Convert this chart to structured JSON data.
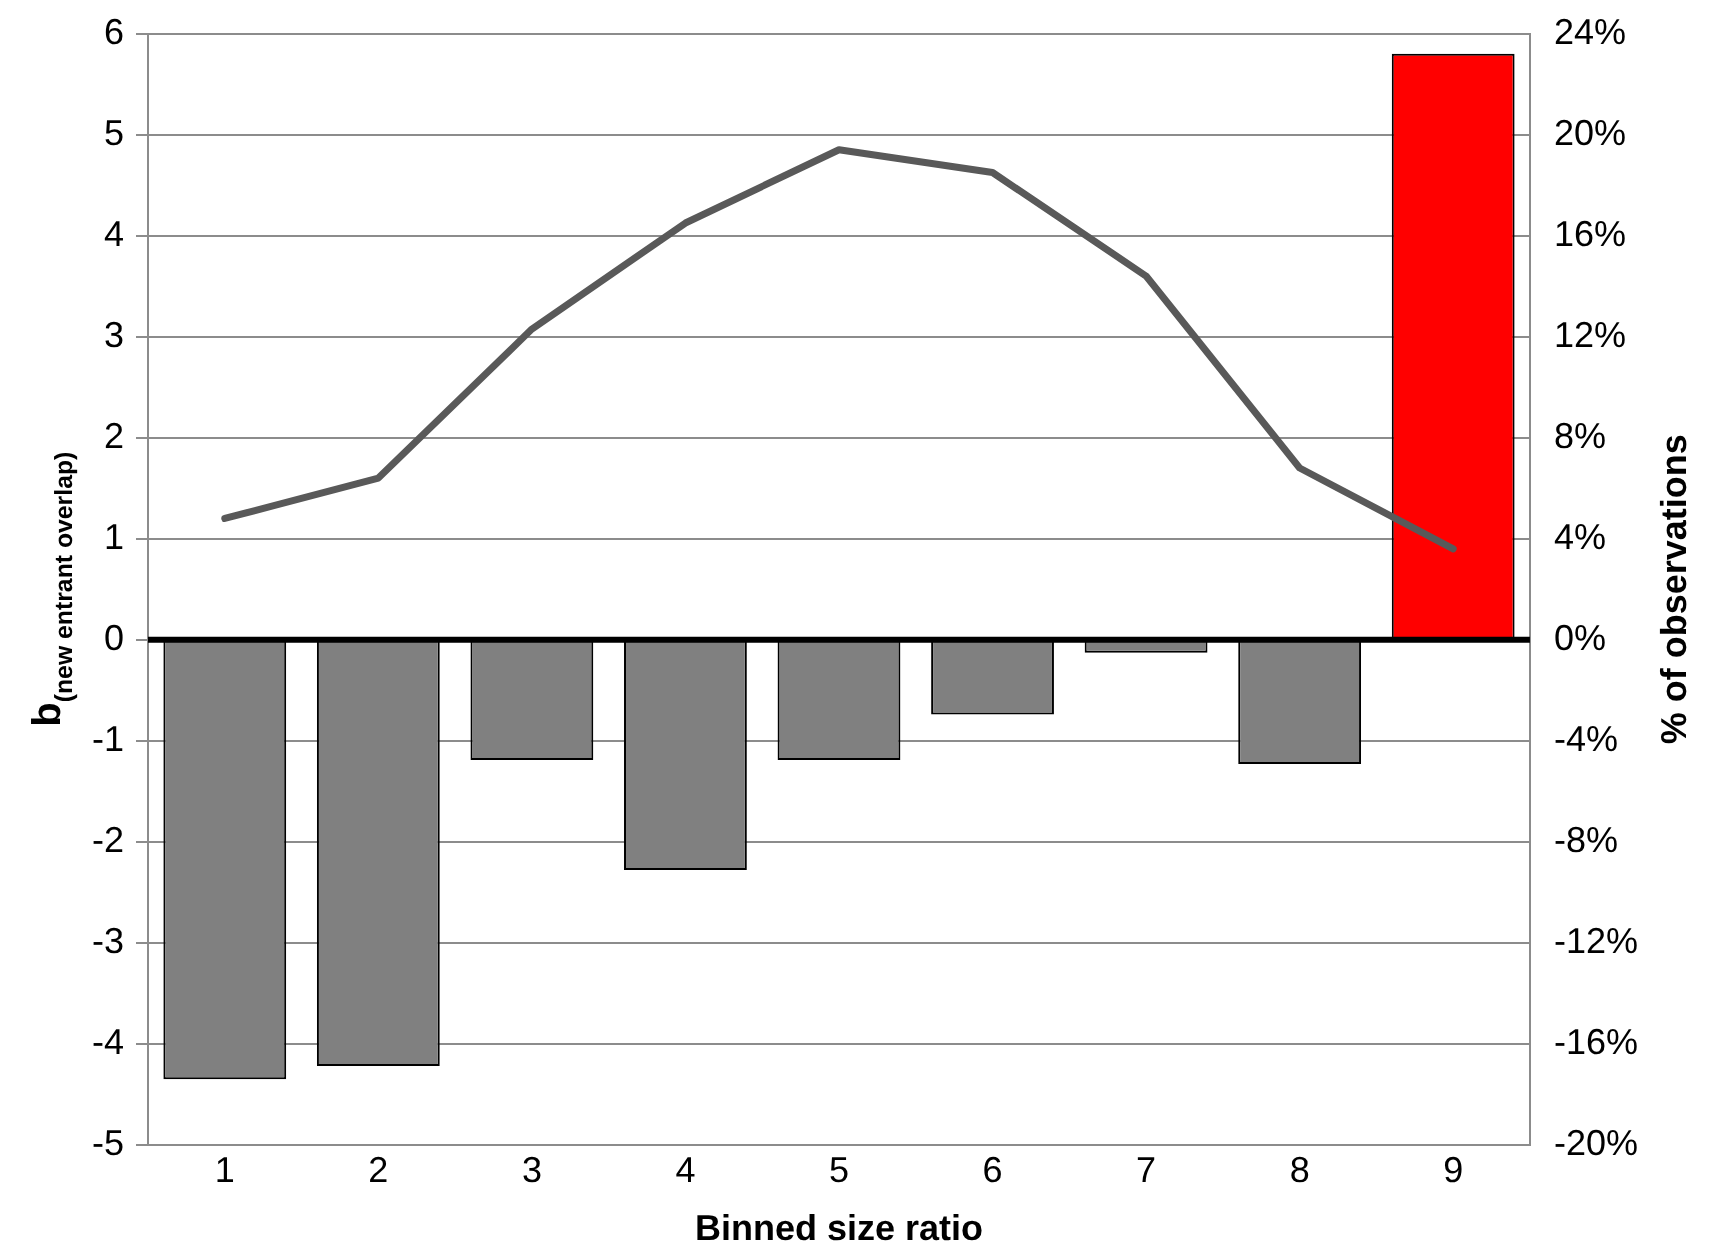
{
  "chart_data": {
    "type": "bar",
    "xlabel": "Binned size ratio",
    "ylabel": "b$_{(new entrant overlap)}$",
    "y2label": "% of observations",
    "categories": [
      "1",
      "2",
      "3",
      "4",
      "5",
      "6",
      "7",
      "8",
      "9"
    ],
    "series": [
      {
        "colors": [
          "#808080",
          "#808080",
          "#808080",
          "#808080",
          "#808080",
          "#808080",
          "#808080",
          "#808080",
          "#ff0000"
        ],
        "values": [
          -4.35,
          -4.22,
          -1.19,
          -2.28,
          -1.19,
          -0.74,
          -0.13,
          -1.23,
          5.8
        ]
      },
      {
        "type": "line",
        "axis": "y2",
        "color": "#595959",
        "values": [
          4.8,
          6.4,
          12.3,
          16.5,
          19.4,
          18.5,
          14.4,
          6.8,
          3.6
        ]
      }
    ],
    "ylim": [
      -5,
      6
    ],
    "yticks": [
      -5,
      -4,
      -3,
      -2,
      -1,
      0,
      1,
      2,
      3,
      4,
      5,
      6
    ],
    "y2lim": [
      -20,
      24
    ],
    "y2ticks": [
      {
        "value": -20,
        "label": "-20%"
      },
      {
        "value": -16,
        "label": "-16%"
      },
      {
        "value": -12,
        "label": "-12%"
      },
      {
        "value": -8,
        "label": "-8%"
      },
      {
        "value": -4,
        "label": "-4%"
      },
      {
        "value": 0,
        "label": "0%"
      },
      {
        "value": 4,
        "label": "4%"
      },
      {
        "value": 8,
        "label": "8%"
      },
      {
        "value": 12,
        "label": "12%"
      },
      {
        "value": 16,
        "label": "16%"
      },
      {
        "value": 20,
        "label": "20%"
      },
      {
        "value": 24,
        "label": "24%"
      }
    ],
    "ref_lines": [
      {
        "axis": "y",
        "value": 0,
        "color": "#000000"
      }
    ],
    "grid": "y",
    "legend": false,
    "marker": "none",
    "line_style": "solid"
  }
}
